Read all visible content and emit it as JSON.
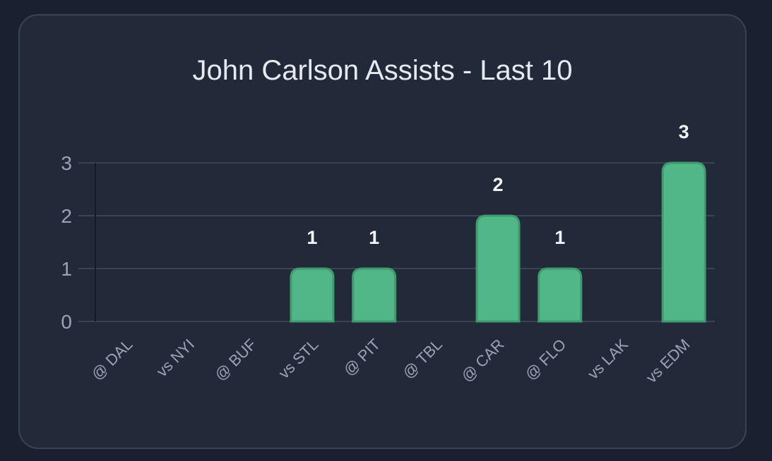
{
  "chart_data": {
    "type": "bar",
    "title": "John Carlson Assists - Last 10",
    "xlabel": "",
    "ylabel": "",
    "categories": [
      "@ DAL",
      "vs NYI",
      "@ BUF",
      "vs STL",
      "@ PIT",
      "@ TBL",
      "@ CAR",
      "@ FLO",
      "vs LAK",
      "vs EDM"
    ],
    "values": [
      0,
      0,
      0,
      1,
      1,
      0,
      2,
      1,
      0,
      3
    ],
    "ylim": [
      0,
      3
    ],
    "yticks": [
      0,
      1,
      2,
      3
    ],
    "grid": true,
    "legend": "none",
    "data_labels": true
  },
  "colors": {
    "background": "#1a2030",
    "card": "#222a3a",
    "bar_fill": "#52b788",
    "bar_stroke": "#3f9a6e",
    "grid": "#3a4354",
    "axis_text": "#9aa3b6",
    "value_text": "#f2f4f8"
  }
}
